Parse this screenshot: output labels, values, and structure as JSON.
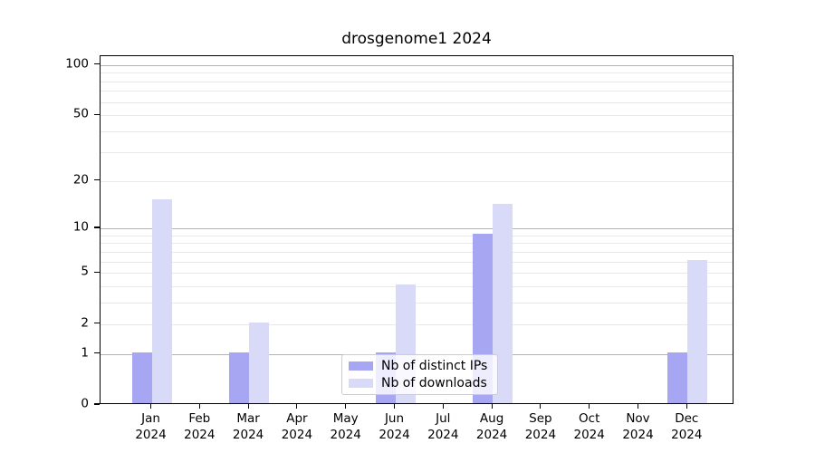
{
  "title": "drosgenome1 2024",
  "chart_data": {
    "type": "bar",
    "title": "drosgenome1 2024",
    "categories": [
      "Jan 2024",
      "Feb 2024",
      "Mar 2024",
      "Apr 2024",
      "May 2024",
      "Jun 2024",
      "Jul 2024",
      "Aug 2024",
      "Sep 2024",
      "Oct 2024",
      "Nov 2024",
      "Dec 2024"
    ],
    "months": [
      "Jan",
      "Feb",
      "Mar",
      "Apr",
      "May",
      "Jun",
      "Jul",
      "Aug",
      "Sep",
      "Oct",
      "Nov",
      "Dec"
    ],
    "year": "2024",
    "series": [
      {
        "name": "Nb of distinct IPs",
        "color": "#a6a6f2",
        "values": [
          1,
          0,
          1,
          0,
          0,
          1,
          0,
          9,
          0,
          0,
          0,
          1
        ]
      },
      {
        "name": "Nb of downloads",
        "color": "#d9d9f8",
        "values": [
          15,
          0,
          2,
          0,
          0,
          4,
          0,
          14,
          0,
          0,
          0,
          6
        ]
      }
    ],
    "yaxis": {
      "scale": "log1p",
      "ticks": [
        0,
        1,
        2,
        5,
        10,
        20,
        50,
        100
      ],
      "major_gridlines": [
        1,
        10,
        100
      ],
      "minor_gridlines": [
        2,
        3,
        4,
        5,
        6,
        7,
        8,
        9,
        20,
        30,
        40,
        50,
        60,
        70,
        80,
        90
      ],
      "ylim": [
        0,
        113
      ],
      "grid": "horizontal-only"
    },
    "xlabel": "",
    "ylabel": "",
    "legend": {
      "position": "lower center",
      "labels": [
        "Nb of distinct IPs",
        "Nb of downloads"
      ]
    }
  },
  "colors": {
    "bar_distinct_ips": "#a6a6f2",
    "bar_downloads": "#d9d9f8",
    "major_grid": "#b3b3b3",
    "minor_grid": "#e8e8e8",
    "axis_spine": "#000000",
    "legend_border": "#cccccc",
    "legend_background": "rgba(255,255,255,0.8)"
  }
}
